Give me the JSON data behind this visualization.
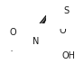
{
  "bg_color": "#ffffff",
  "line_color": "#1a1a1a",
  "bond_lw": 1.1,
  "figsize": [
    0.93,
    0.91
  ],
  "dpi": 100,
  "xlim": [
    0,
    93
  ],
  "ylim": [
    0,
    91
  ]
}
